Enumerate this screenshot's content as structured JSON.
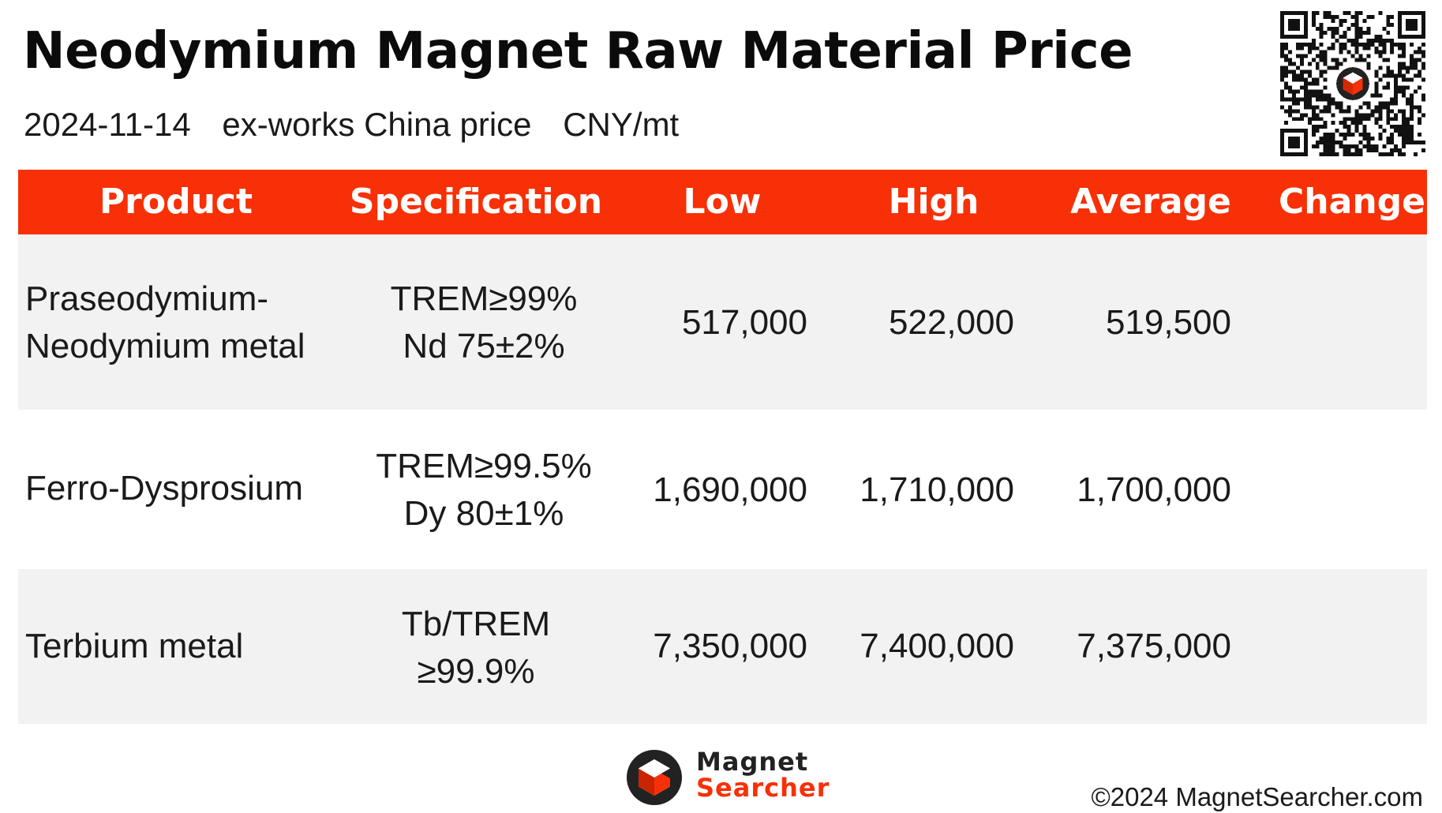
{
  "header": {
    "title": "Neodymium Magnet Raw Material Price",
    "date": "2024-11-14",
    "price_basis": "ex-works China price",
    "unit": "CNY/mt"
  },
  "table": {
    "columns": [
      "Product",
      "Specification",
      "Low",
      "High",
      "Average",
      "Change"
    ],
    "rows": [
      {
        "product_lines": [
          "Praseodymium-",
          "Neodymium metal"
        ],
        "spec_lines": [
          "TREM≥99%",
          "Nd 75±2%"
        ],
        "low": "517,000",
        "high": "522,000",
        "average": "519,500",
        "change": ""
      },
      {
        "product_lines": [
          "Ferro-Dysprosium"
        ],
        "spec_lines": [
          "TREM≥99.5%",
          "Dy 80±1%"
        ],
        "low": "1,690,000",
        "high": "1,710,000",
        "average": "1,700,000",
        "change": ""
      },
      {
        "product_lines": [
          "Terbium metal"
        ],
        "spec_lines": [
          "Tb/TREM",
          "≥99.9%"
        ],
        "low": "7,350,000",
        "high": "7,400,000",
        "average": "7,375,000",
        "change": ""
      }
    ]
  },
  "colors": {
    "accent": "#f83007",
    "row_shade": "#f2f2f2",
    "text": "#1a1a1a"
  },
  "footer": {
    "logo_line1": "Magnet",
    "logo_line2": "Searcher",
    "copyright": "©2024 MagnetSearcher.com"
  },
  "icons": {
    "qr": "qr-code-icon",
    "logo": "magnet-searcher-logo-icon"
  }
}
